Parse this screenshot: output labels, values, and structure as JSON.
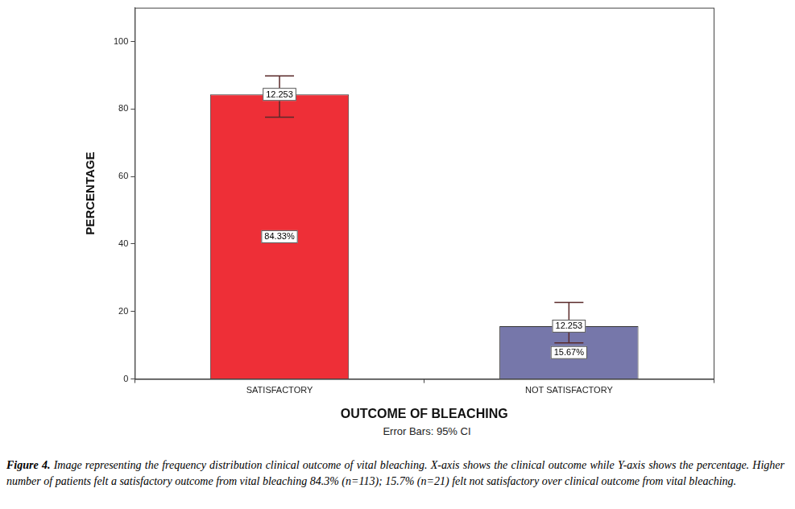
{
  "chart_data": {
    "type": "bar",
    "x_label": "OUTCOME OF BLEACHING",
    "y_label": "PERCENTAGE",
    "categories": [
      "SATISFACTORY",
      "NOT SATISFACTORY"
    ],
    "values": [
      84.33,
      15.67
    ],
    "value_labels": [
      "84.33%",
      "15.67%"
    ],
    "data_labels": true,
    "colors": [
      "#ee2f37",
      "#7677aa"
    ],
    "error_low": [
      77.6,
      10.7
    ],
    "error_high": [
      89.8,
      22.7
    ],
    "error_labels": [
      "12.253",
      "12.253"
    ],
    "note": "Error Bars: 95% CI",
    "ylim": [
      0,
      110
    ],
    "yticks": [
      0,
      20,
      40,
      60,
      80,
      100
    ],
    "grid": false,
    "caption_label": "Figure 4.",
    "caption": "Image representing the frequency distribution clinical outcome of vital bleaching. X-axis shows the clinical outcome while Y-axis shows the percentage. Higher number of patients felt a satisfactory outcome from vital bleaching 84.3% (n=113); 15.7% (n=21) felt not satisfactory over clinical outcome from vital bleaching."
  }
}
